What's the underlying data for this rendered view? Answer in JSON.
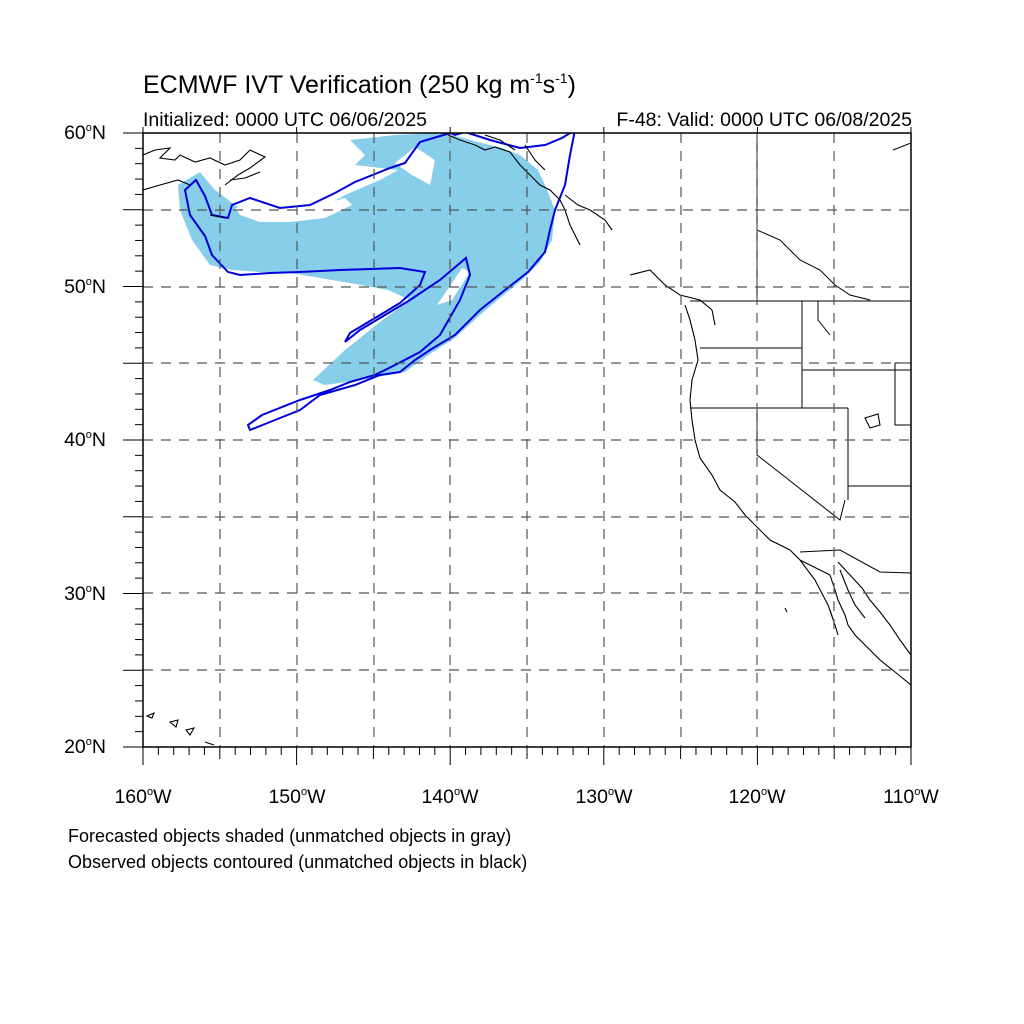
{
  "title": {
    "prefix": "ECMWF IVT Verification (250 kg m",
    "exp1": "-1",
    "mid": "s",
    "exp2": "-1",
    "suffix": ")"
  },
  "initialized": "Initialized: 0000 UTC 06/06/2025",
  "valid": "F-48: Valid: 0000 UTC 06/08/2025",
  "lat_labels": [
    "60",
    "50",
    "40",
    "30",
    "20"
  ],
  "lat_suffix": "N",
  "lon_labels": [
    "160",
    "150",
    "140",
    "130",
    "120",
    "110"
  ],
  "lon_suffix": "W",
  "degree_symbol": "o",
  "notes": [
    "Forecasted objects shaded (unmatched objects in gray)",
    "Observed objects contoured (unmatched objects in black)"
  ],
  "colors": {
    "forecast_fill": "#87ceeb",
    "observed_contour": "#0000dd",
    "coastline": "#000000",
    "grid": "#555555"
  },
  "map": {
    "extent_lon": [
      -160,
      -110
    ],
    "extent_lat": [
      20,
      60
    ],
    "grid_spacing_deg": 5
  }
}
